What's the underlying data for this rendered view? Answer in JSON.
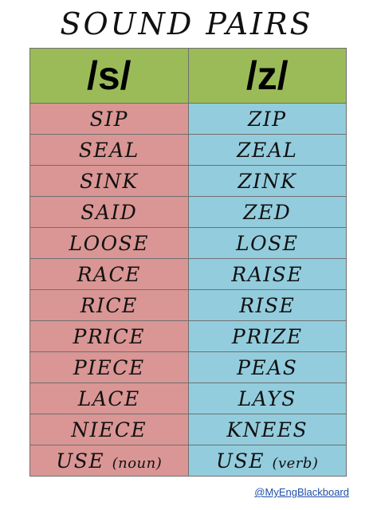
{
  "title": "SOUND PAIRS",
  "columns": [
    "/s/",
    "/z/"
  ],
  "colors": {
    "header_bg": "#9bbb59",
    "s_column_bg": "#d99694",
    "z_column_bg": "#93cddd",
    "credit_link": "#1f4ea8"
  },
  "rows": [
    {
      "s": "SIP",
      "z": "ZIP"
    },
    {
      "s": "SEAL",
      "z": "ZEAL"
    },
    {
      "s": "SINK",
      "z": "ZINK"
    },
    {
      "s": "SAID",
      "z": "ZED"
    },
    {
      "s": "LOOSE",
      "z": "LOSE"
    },
    {
      "s": "RACE",
      "z": "RAISE"
    },
    {
      "s": "RICE",
      "z": "RISE"
    },
    {
      "s": "PRICE",
      "z": "PRIZE"
    },
    {
      "s": "PIECE",
      "z": "PEAS"
    },
    {
      "s": "LACE",
      "z": "LAYS"
    },
    {
      "s": "NIECE",
      "z": "KNEES"
    },
    {
      "s": "USE",
      "s_note": "(noun)",
      "z": "USE",
      "z_note": "(verb)"
    }
  ],
  "credit": "@MyEngBlackboard"
}
